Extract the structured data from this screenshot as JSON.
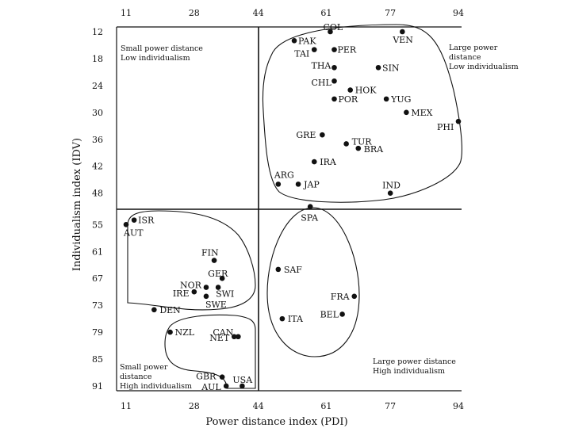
{
  "chart_data": {
    "type": "scatter",
    "xlabel": "Power distance index (PDI)",
    "ylabel": "Individualism index (IDV)",
    "x_ticks": [
      "11",
      "28",
      "44",
      "61",
      "77",
      "94"
    ],
    "y_ticks": [
      "12",
      "18",
      "24",
      "30",
      "36",
      "42",
      "48",
      "55",
      "61",
      "67",
      "73",
      "79",
      "85",
      "91"
    ],
    "xlim": [
      11,
      94
    ],
    "ylim": [
      12,
      91
    ],
    "y_reversed": true,
    "grid": false,
    "dividers": {
      "x": 44,
      "y": 51.5
    },
    "quadrant_labels": [
      {
        "id": "tl",
        "lines": [
          "Small power distance",
          "Low individualism"
        ]
      },
      {
        "id": "tr",
        "lines": [
          "Large power",
          "distance",
          "Low individualism"
        ]
      },
      {
        "id": "bl",
        "lines": [
          "Small power",
          "distance",
          "High individualism"
        ]
      },
      {
        "id": "br",
        "lines": [
          "Large power distance",
          "High individualism"
        ]
      }
    ],
    "points": [
      {
        "label": "PAK",
        "x": 53,
        "y": 14
      },
      {
        "label": "COL",
        "x": 62,
        "y": 12
      },
      {
        "label": "VEN",
        "x": 80,
        "y": 12
      },
      {
        "label": "TAI",
        "x": 58,
        "y": 16
      },
      {
        "label": "PER",
        "x": 63,
        "y": 16
      },
      {
        "label": "THA",
        "x": 63,
        "y": 20
      },
      {
        "label": "SIN",
        "x": 74,
        "y": 20
      },
      {
        "label": "CHL",
        "x": 63,
        "y": 23
      },
      {
        "label": "HOK",
        "x": 67,
        "y": 25
      },
      {
        "label": "POR",
        "x": 63,
        "y": 27
      },
      {
        "label": "YUG",
        "x": 76,
        "y": 27
      },
      {
        "label": "MEX",
        "x": 81,
        "y": 30
      },
      {
        "label": "PHI",
        "x": 94,
        "y": 32
      },
      {
        "label": "GRE",
        "x": 60,
        "y": 35
      },
      {
        "label": "TUR",
        "x": 66,
        "y": 37
      },
      {
        "label": "BRA",
        "x": 69,
        "y": 38
      },
      {
        "label": "IRA",
        "x": 58,
        "y": 41
      },
      {
        "label": "ARG",
        "x": 49,
        "y": 46
      },
      {
        "label": "JAP",
        "x": 54,
        "y": 46
      },
      {
        "label": "IND",
        "x": 77,
        "y": 48
      },
      {
        "label": "SPA",
        "x": 57,
        "y": 51
      },
      {
        "label": "ISR",
        "x": 13,
        "y": 54
      },
      {
        "label": "AUT",
        "x": 11,
        "y": 55
      },
      {
        "label": "FIN",
        "x": 33,
        "y": 63
      },
      {
        "label": "GER",
        "x": 35,
        "y": 67
      },
      {
        "label": "SAF",
        "x": 49,
        "y": 65
      },
      {
        "label": "NOR",
        "x": 31,
        "y": 69
      },
      {
        "label": "SWI",
        "x": 34,
        "y": 69
      },
      {
        "label": "IRE",
        "x": 28,
        "y": 70
      },
      {
        "label": "SWE",
        "x": 31,
        "y": 71
      },
      {
        "label": "FRA",
        "x": 68,
        "y": 71
      },
      {
        "label": "BEL",
        "x": 65,
        "y": 75
      },
      {
        "label": "DEN",
        "x": 18,
        "y": 74
      },
      {
        "label": "ITA",
        "x": 50,
        "y": 76
      },
      {
        "label": "NZL",
        "x": 22,
        "y": 79
      },
      {
        "label": "CAN",
        "x": 39,
        "y": 80
      },
      {
        "label": "NET",
        "x": 38,
        "y": 80
      },
      {
        "label": "GBR",
        "x": 35,
        "y": 89
      },
      {
        "label": "USA",
        "x": 40,
        "y": 91
      },
      {
        "label": "AUL",
        "x": 36,
        "y": 91
      }
    ]
  }
}
